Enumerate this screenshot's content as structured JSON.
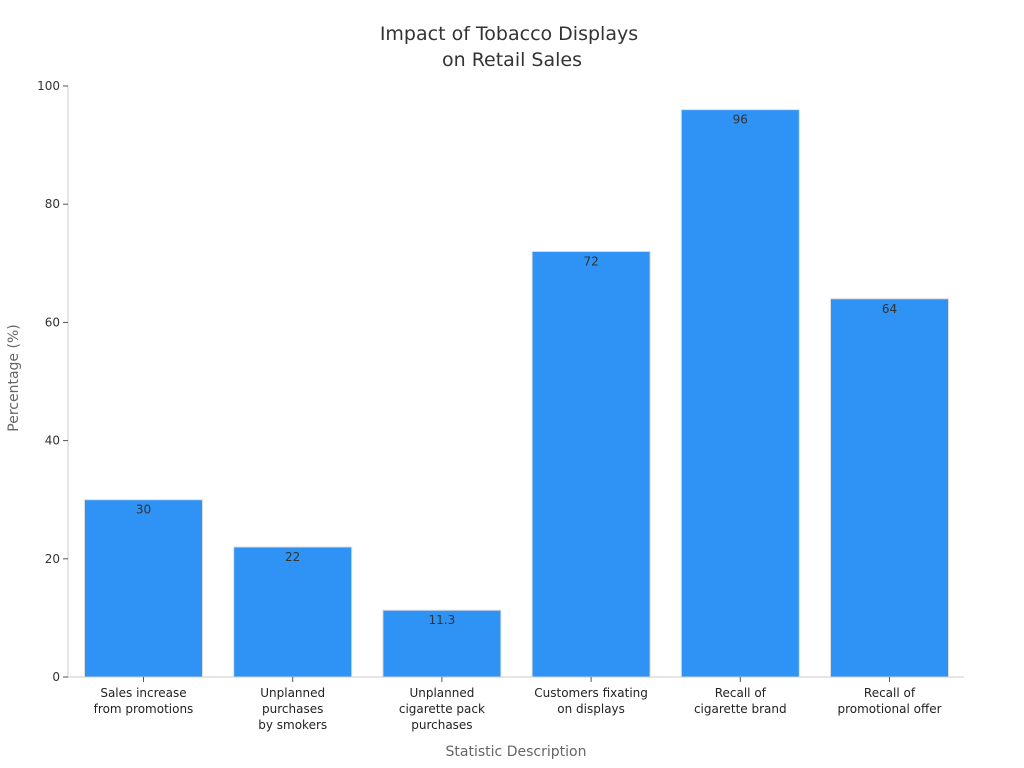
{
  "chart_data": {
    "type": "bar",
    "title": [
      "Impact of Tobacco Displays",
      "on Retail Sales"
    ],
    "xlabel": "Statistic Description",
    "ylabel": "Percentage (%)",
    "ylim": [
      0,
      100
    ],
    "yticks": [
      0,
      20,
      40,
      60,
      80,
      100
    ],
    "grid": false,
    "categories": [
      [
        "Sales increase",
        "from promotions"
      ],
      [
        "Unplanned",
        "purchases",
        "by smokers"
      ],
      [
        "Unplanned",
        "cigarette pack",
        "purchases"
      ],
      [
        "Customers fixating",
        "on displays"
      ],
      [
        "Recall of",
        "cigarette brand"
      ],
      [
        "Recall of",
        "promotional offer"
      ]
    ],
    "values": [
      30,
      22,
      11.3,
      72,
      96,
      64
    ],
    "data_labels": [
      "30",
      "22",
      "11.3",
      "72",
      "96",
      "64"
    ],
    "colors": {
      "bar": "#2e93f5",
      "bar_edge": "#dddddd",
      "axis": "#cccccc"
    }
  }
}
